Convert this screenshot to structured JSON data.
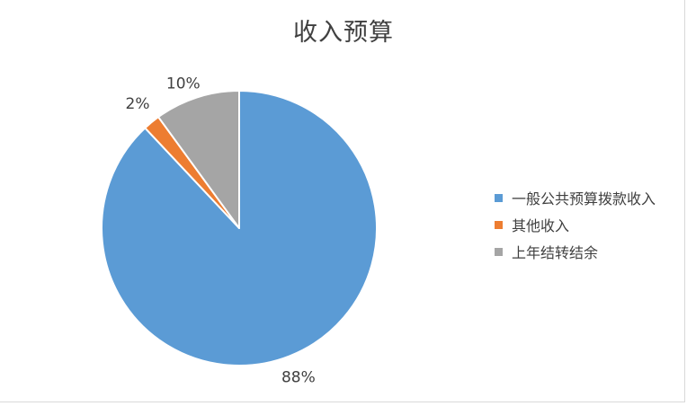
{
  "chart_data": {
    "type": "pie",
    "title": "收入预算",
    "categories": [
      "一般公共预算拨款收入",
      "其他收入",
      "上年结转结余"
    ],
    "values": [
      88,
      2,
      10
    ],
    "labels": [
      "88%",
      "2%",
      "10%"
    ],
    "colors": [
      "#5b9bd5",
      "#ed7d31",
      "#a5a5a5"
    ],
    "legend": "right"
  }
}
